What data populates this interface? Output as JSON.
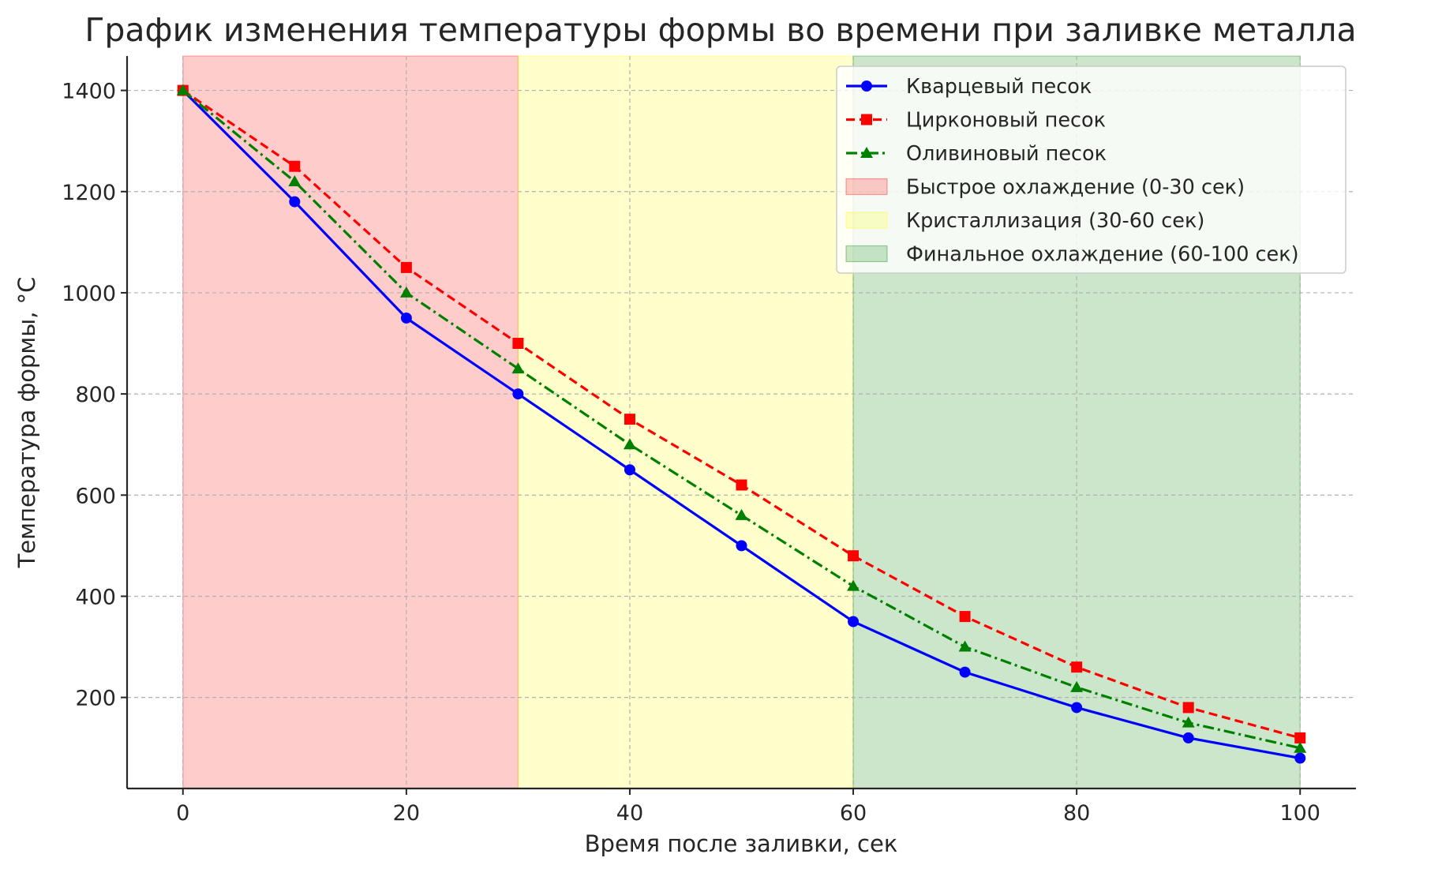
{
  "chart_data": {
    "type": "line",
    "title": "График изменения температуры формы во времени при заливке металла",
    "xlabel": "Время после заливки, сек",
    "ylabel": "Температура формы, °C",
    "xlim": [
      -5,
      105
    ],
    "ylim": [
      20,
      1468
    ],
    "xticks": [
      0,
      20,
      40,
      60,
      80,
      100
    ],
    "yticks": [
      200,
      400,
      600,
      800,
      1000,
      1200,
      1400
    ],
    "grid": true,
    "legend_position": "top-right",
    "x": [
      0,
      10,
      20,
      30,
      40,
      50,
      60,
      70,
      80,
      90,
      100
    ],
    "series": [
      {
        "name": "Кварцевый песок",
        "color": "#0000ff",
        "marker": "circle",
        "linestyle": "solid",
        "values": [
          1400,
          1180,
          950,
          800,
          650,
          500,
          350,
          250,
          180,
          120,
          80
        ]
      },
      {
        "name": "Цирконовый песок",
        "color": "#ff0000",
        "marker": "square",
        "linestyle": "dashed",
        "values": [
          1400,
          1250,
          1050,
          900,
          750,
          620,
          480,
          360,
          260,
          180,
          120
        ]
      },
      {
        "name": "Оливиновый песок",
        "color": "#008000",
        "marker": "triangle",
        "linestyle": "dashdot",
        "values": [
          1400,
          1220,
          1000,
          850,
          700,
          560,
          420,
          300,
          220,
          150,
          100
        ]
      }
    ],
    "regions": [
      {
        "label": "Быстрое охлаждение (0-30 сек)",
        "x_start": 0,
        "x_end": 30,
        "color": "#ff0000",
        "opacity": 0.2
      },
      {
        "label": "Кристаллизация (30-60 сек)",
        "x_start": 30,
        "x_end": 60,
        "color": "#ffff00",
        "opacity": 0.2
      },
      {
        "label": "Финальное охлаждение (60-100 сек)",
        "x_start": 60,
        "x_end": 100,
        "color": "#008000",
        "opacity": 0.2
      }
    ]
  }
}
